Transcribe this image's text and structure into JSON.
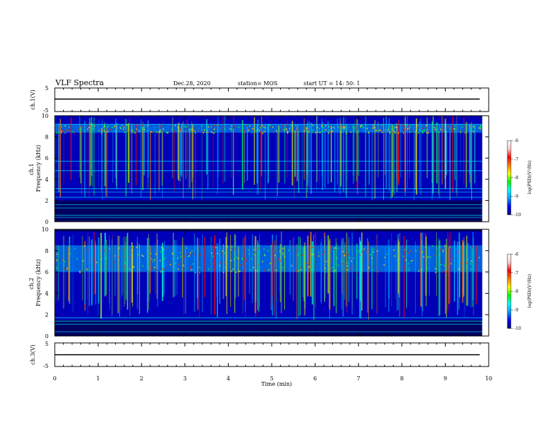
{
  "header": {
    "title": "VLF Spectra",
    "date": "Dec.28, 2020",
    "station": "station= MOS",
    "start": "start  UT =   14: 50: 1"
  },
  "chart_data": {
    "type": "heatmap",
    "xlabel": "Time  (min)",
    "xlim": [
      0,
      10
    ],
    "xticks": [
      "0",
      "1",
      "2",
      "3",
      "4",
      "5",
      "6",
      "7",
      "8",
      "9",
      "10"
    ],
    "panels": [
      {
        "id": "ch1-waveform",
        "ylabel": "ch.1(V)",
        "ylim": [
          -5,
          5
        ],
        "yticks": [
          "5",
          "-5"
        ],
        "trace_level": 0
      },
      {
        "id": "ch1-spectrum",
        "ylabel": "ch.1\nFrequency (kHz)",
        "ylim": [
          0,
          10
        ],
        "yticks": [
          "0",
          "2",
          "4",
          "6",
          "8",
          "10"
        ],
        "band_kHz": [
          8.4,
          9.2
        ],
        "emission_kHz": [
          2.0,
          10.0
        ],
        "lines_kHz": [
          0.4,
          0.6,
          1.3,
          1.6,
          2.3,
          2.8,
          3.1,
          4.8,
          5.7,
          9.2
        ]
      },
      {
        "id": "ch2-spectrum",
        "ylabel": "ch.2\nFrequency (kHz)",
        "ylim": [
          0,
          10
        ],
        "yticks": [
          "0",
          "2",
          "4",
          "6",
          "8",
          "10"
        ],
        "band_kHz": [
          6.0,
          8.5
        ],
        "emission_kHz": [
          1.5,
          9.8
        ],
        "lines_kHz": [
          0.4,
          1.1,
          1.4,
          1.7
        ]
      },
      {
        "id": "ch3-waveform",
        "ylabel": "ch.3(V)",
        "ylim": [
          -5,
          5
        ],
        "yticks": [
          "5",
          "-5"
        ],
        "trace_level": 0
      }
    ],
    "colorbar": {
      "label": "log(PSD)(V²/Hz)",
      "range": [
        -10,
        -6
      ],
      "ticks": [
        "-6",
        "-7",
        "-8",
        "-9",
        "-10"
      ],
      "colors": [
        "#000080",
        "#0000ff",
        "#00a0ff",
        "#00ffff",
        "#00ff00",
        "#ffff00",
        "#ff8000",
        "#ff0000",
        "#ffd0d0",
        "#ffffff"
      ]
    },
    "data_end_min": 9.85
  }
}
